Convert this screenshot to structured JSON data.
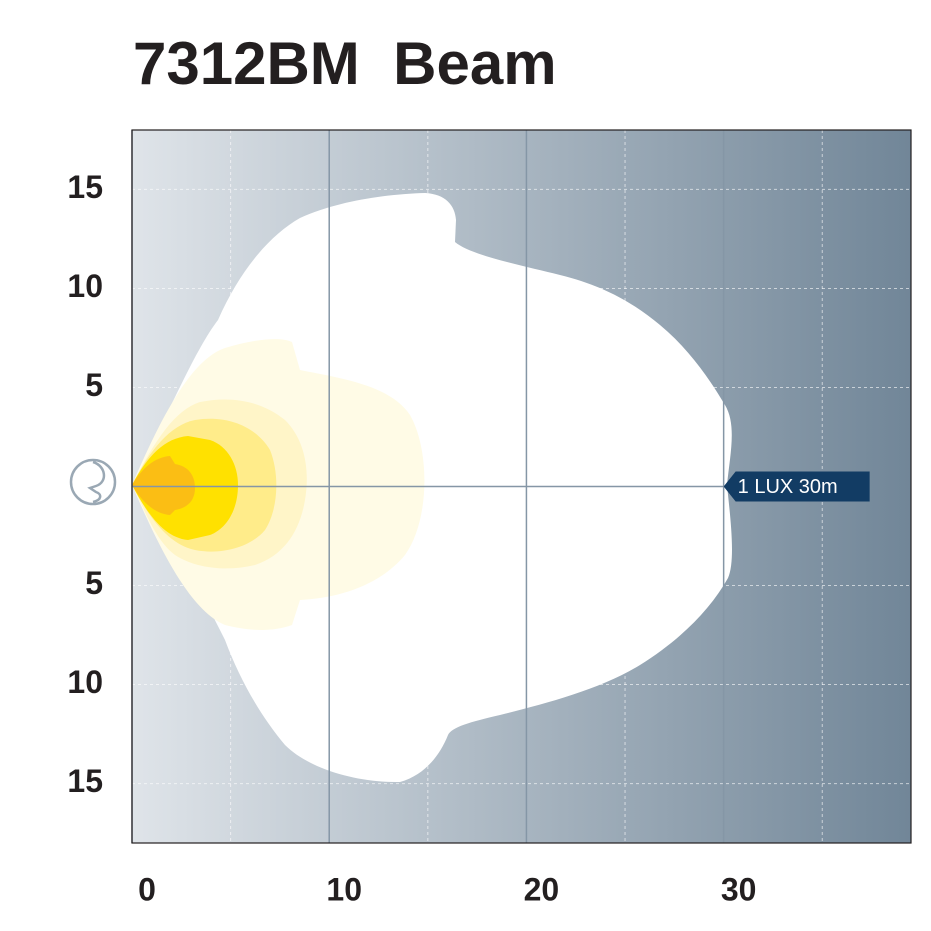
{
  "chart_data": {
    "type": "beam",
    "title": "7312BM  Beam",
    "xlim": [
      0,
      39.5
    ],
    "ylim": [
      -18,
      18
    ],
    "xticks": [
      0,
      10,
      20,
      30
    ],
    "yticks": [
      15,
      10,
      5,
      {
        "value": -5,
        "label": "5"
      },
      {
        "value": -10,
        "label": "10"
      },
      {
        "value": -15,
        "label": "15"
      }
    ],
    "xgrid_minor": [
      5,
      15,
      25,
      35
    ],
    "grid": true,
    "annotation": {
      "text": "1 LUX 30m",
      "x": 30,
      "y": 0
    }
  }
}
